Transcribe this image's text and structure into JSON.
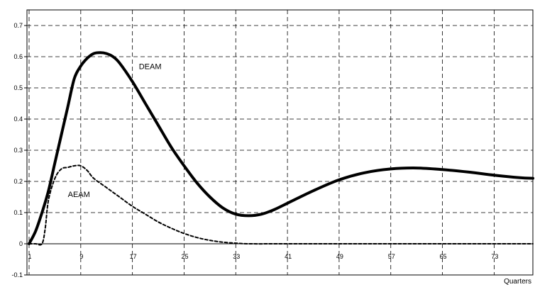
{
  "chart_data": {
    "type": "line",
    "title": "",
    "xlabel": "Quarters",
    "ylabel": "",
    "xlim": [
      1,
      79
    ],
    "ylim": [
      -0.1,
      0.75
    ],
    "xticks": [
      1,
      9,
      17,
      25,
      33,
      41,
      49,
      57,
      65,
      73
    ],
    "yticks": [
      -0.1,
      0,
      0.1,
      0.2,
      0.3,
      0.4,
      0.5,
      0.6,
      0.7
    ],
    "ytick_labels": [
      "-0.1",
      "0",
      "0.1",
      "0.2",
      "0.3",
      "0.4",
      "0.5",
      "0.6",
      "0.7"
    ],
    "grid": true,
    "annotations": [
      {
        "text": "DEAM",
        "x": 18,
        "y": 0.56
      },
      {
        "text": "AEAM",
        "x": 7,
        "y": 0.15
      }
    ],
    "series": [
      {
        "name": "DEAM",
        "style": "solid",
        "color": "#000000",
        "x": [
          1,
          2,
          3,
          4,
          5,
          6,
          7,
          8,
          9,
          10,
          11,
          12,
          13,
          14,
          15,
          17,
          19,
          21,
          23,
          25,
          27,
          29,
          31,
          33,
          35,
          37,
          39,
          41,
          45,
          49,
          53,
          57,
          61,
          65,
          69,
          73,
          77,
          79
        ],
        "y": [
          0.0,
          0.04,
          0.1,
          0.17,
          0.26,
          0.35,
          0.44,
          0.53,
          0.57,
          0.595,
          0.61,
          0.613,
          0.61,
          0.6,
          0.58,
          0.52,
          0.45,
          0.38,
          0.31,
          0.25,
          0.195,
          0.15,
          0.115,
          0.095,
          0.09,
          0.095,
          0.11,
          0.13,
          0.17,
          0.205,
          0.228,
          0.24,
          0.243,
          0.238,
          0.23,
          0.22,
          0.212,
          0.21
        ]
      },
      {
        "name": "AEAM",
        "style": "dashed",
        "color": "#000000",
        "x": [
          1,
          2,
          3,
          3.5,
          4,
          5,
          6,
          7,
          8,
          9,
          10,
          11,
          13,
          15,
          17,
          19,
          21,
          23,
          25,
          27,
          29,
          31,
          33,
          35,
          41,
          49,
          57,
          65,
          73,
          79
        ],
        "y": [
          0,
          0,
          0,
          0.05,
          0.14,
          0.21,
          0.24,
          0.245,
          0.25,
          0.25,
          0.235,
          0.21,
          0.18,
          0.15,
          0.12,
          0.095,
          0.07,
          0.05,
          0.033,
          0.02,
          0.011,
          0.005,
          0.002,
          0.0,
          0.0,
          0.0,
          0.0,
          0.0,
          0.0,
          0.0
        ]
      }
    ]
  }
}
